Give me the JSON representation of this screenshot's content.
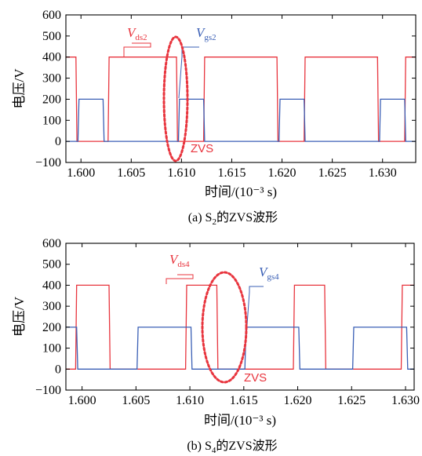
{
  "chart_data": [
    {
      "type": "line",
      "xlabel": "时间/(10⁻³ s)",
      "ylabel": "电压/V",
      "xlim": [
        1.5985,
        1.6333
      ],
      "ylim": [
        -100,
        600
      ],
      "xticks": [
        "1.600",
        "1.605",
        "1.610",
        "1.615",
        "1.620",
        "1.625",
        "1.630"
      ],
      "xtick_values": [
        1.6,
        1.605,
        1.61,
        1.615,
        1.62,
        1.625,
        1.63
      ],
      "yticks": [
        "600",
        "500",
        "400",
        "300",
        "200",
        "100",
        "0",
        "−100"
      ],
      "ytick_values": [
        600,
        500,
        400,
        300,
        200,
        100,
        0,
        -100
      ],
      "caption_prefix": "(a) S",
      "caption_sub": "2",
      "caption_suffix": "的ZVS波形",
      "series": [
        {
          "label_main": "V",
          "label_sub": "ds2",
          "color": "#e8353e",
          "x": [
            1.5985,
            1.5995,
            1.5996,
            1.6027,
            1.6028,
            1.6095,
            1.6096,
            1.6122,
            1.6123,
            1.6195,
            1.6196,
            1.6222,
            1.6223,
            1.6295,
            1.6296,
            1.6322,
            1.6323,
            1.6333
          ],
          "y": [
            400,
            400,
            0,
            0,
            400,
            400,
            0,
            0,
            400,
            400,
            0,
            0,
            400,
            400,
            0,
            0,
            400,
            400
          ]
        },
        {
          "label_main": "V",
          "label_sub": "gs2",
          "color": "#3a5fb5",
          "x": [
            1.5985,
            1.5997,
            1.5998,
            1.6022,
            1.6023,
            1.6097,
            1.6098,
            1.6122,
            1.6123,
            1.6197,
            1.6198,
            1.6222,
            1.6223,
            1.6297,
            1.6298,
            1.6322,
            1.6323,
            1.6333
          ],
          "y": [
            0,
            0,
            200,
            200,
            0,
            0,
            200,
            200,
            0,
            0,
            200,
            200,
            0,
            0,
            200,
            200,
            0,
            0
          ]
        }
      ],
      "annotations": {
        "zvs": "ZVS"
      }
    },
    {
      "type": "line",
      "xlabel": "时间/(10⁻³ s)",
      "ylabel": "电压/V",
      "xlim": [
        1.5985,
        1.6308
      ],
      "ylim": [
        -100,
        600
      ],
      "xticks": [
        "1.600",
        "1.605",
        "1.610",
        "1.615",
        "1.620",
        "1.625",
        "1.630"
      ],
      "xtick_values": [
        1.6,
        1.605,
        1.61,
        1.615,
        1.62,
        1.625,
        1.63
      ],
      "yticks": [
        "600",
        "500",
        "400",
        "300",
        "200",
        "100",
        "0",
        "−100"
      ],
      "ytick_values": [
        600,
        500,
        400,
        300,
        200,
        100,
        0,
        -100
      ],
      "caption_prefix": "(b) S",
      "caption_sub": "4",
      "caption_suffix": "的ZVS波形",
      "series": [
        {
          "label_main": "V",
          "label_sub": "ds4",
          "color": "#e8353e",
          "x": [
            1.5985,
            1.5994,
            1.5995,
            1.6025,
            1.6026,
            1.6096,
            1.6097,
            1.6125,
            1.6126,
            1.6196,
            1.6197,
            1.6225,
            1.6226,
            1.6296,
            1.6297,
            1.6308
          ],
          "y": [
            0,
            0,
            400,
            400,
            0,
            0,
            400,
            400,
            0,
            0,
            400,
            400,
            0,
            0,
            400,
            400
          ]
        },
        {
          "label_main": "V",
          "label_sub": "gs4",
          "color": "#3a5fb5",
          "x": [
            1.5985,
            1.5995,
            1.5996,
            1.6051,
            1.6052,
            1.6101,
            1.6102,
            1.6151,
            1.6152,
            1.6201,
            1.6202,
            1.6251,
            1.6252,
            1.6301,
            1.6302,
            1.6308
          ],
          "y": [
            200,
            200,
            0,
            0,
            200,
            200,
            0,
            0,
            200,
            200,
            0,
            0,
            200,
            200,
            0,
            0
          ]
        }
      ],
      "annotations": {
        "zvs": "ZVS"
      }
    }
  ]
}
